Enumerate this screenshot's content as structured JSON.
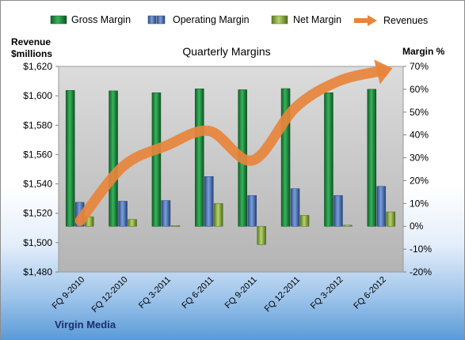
{
  "chart_data": {
    "type": "bar",
    "title": "Quarterly Margins",
    "company": "Virgin Media",
    "categories": [
      "FQ 9-2010",
      "FQ 12-2010",
      "FQ 3-2011",
      "FQ 6-2011",
      "FQ 9-2011",
      "FQ 12-2011",
      "FQ 3-2012",
      "FQ 6-2012"
    ],
    "y_left": {
      "label_line1": "Revenue",
      "label_line2": "$millions",
      "range": [
        1480,
        1620
      ],
      "ticks": [
        "$1,480",
        "$1,500",
        "$1,520",
        "$1,540",
        "$1,560",
        "$1,580",
        "$1,600",
        "$1,620"
      ]
    },
    "y_right": {
      "label": "Margin %",
      "range": [
        -20,
        70
      ],
      "ticks": [
        "-20%",
        "-10%",
        "0%",
        "10%",
        "20%",
        "30%",
        "40%",
        "50%",
        "60%",
        "70%"
      ]
    },
    "series": [
      {
        "name": "Gross Margin",
        "type": "bar",
        "axis": "right",
        "color": "#1e8a3c",
        "values": [
          59.5,
          59.3,
          58.5,
          60.2,
          59.8,
          60.3,
          58.5,
          60.0
        ]
      },
      {
        "name": "Operating Margin",
        "type": "bar",
        "axis": "right",
        "color": "#4a6fb5",
        "values": [
          10.5,
          11.0,
          11.3,
          21.8,
          13.5,
          16.5,
          13.5,
          17.5
        ]
      },
      {
        "name": "Net Margin",
        "type": "bar",
        "axis": "right",
        "color": "#8aae3c",
        "values": [
          4.2,
          3.0,
          0.3,
          10.0,
          -8.0,
          4.8,
          0.5,
          6.3
        ]
      },
      {
        "name": "Revenues",
        "type": "line",
        "axis": "left",
        "color": "#e8843c",
        "values": [
          1515,
          1552,
          1566,
          1576,
          1556,
          1592,
          1610,
          1617
        ]
      }
    ],
    "legend_position": "top",
    "grid": false
  }
}
